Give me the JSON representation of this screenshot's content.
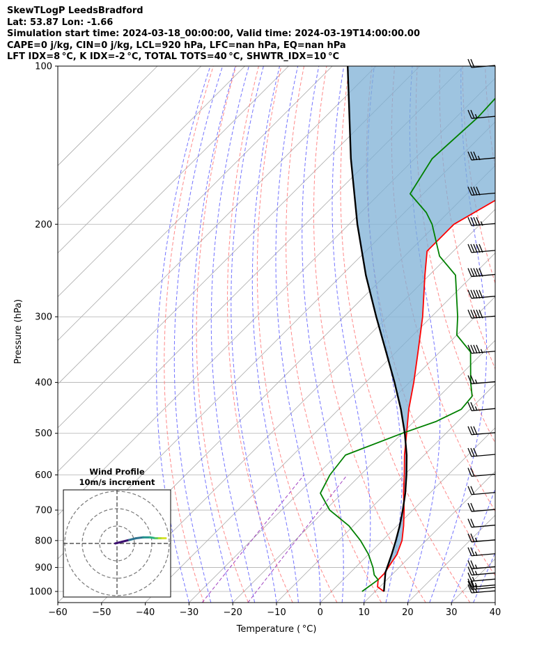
{
  "header": {
    "title": "SkewTLogP LeedsBradford",
    "location": "Lat: 53.87   Lon: -1.66",
    "times": "Simulation start time: 2024-03-18_00:00:00, Valid time: 2024-03-19T14:00:00.00",
    "parcel": "CAPE=0 j/kg, CIN=0 j/kg, LCL=920 hPa, LFC=nan hPa, EQ=nan hPa",
    "indices": "LFT IDX=8 °C, K IDX=-2 °C, TOTAL TOTS=40 °C, SHWTR_IDX=10 °C"
  },
  "chart_data": {
    "type": "line",
    "subtype": "skew-T log-p diagram",
    "xlabel": "Temperature ( °C)",
    "ylabel": "Pressure (hPa)",
    "xlim": [
      -60,
      40
    ],
    "ylim": [
      1050,
      100
    ],
    "y_scale": "log",
    "x_ticks": [
      -60,
      -50,
      -40,
      -30,
      -20,
      -10,
      0,
      10,
      20,
      30,
      40
    ],
    "y_ticks": [
      100,
      200,
      300,
      400,
      500,
      600,
      700,
      800,
      900,
      1000
    ],
    "grid": true,
    "series": [
      {
        "role": "temperature",
        "color": "#ff0000",
        "p": [
          1000,
          980,
          950,
          925,
          900,
          850,
          800,
          750,
          700,
          650,
          600,
          550,
          500,
          450,
          400,
          350,
          300,
          250,
          225,
          200,
          180,
          160,
          150,
          140,
          125,
          115,
          100
        ],
        "t": [
          12,
          9.5,
          8,
          8,
          7.5,
          6.5,
          4.5,
          1.5,
          -2,
          -6,
          -10,
          -14.5,
          -19,
          -24,
          -29,
          -35,
          -42,
          -51,
          -56,
          -56,
          -52,
          -48,
          -47,
          -48.5,
          -51,
          -53,
          -55
        ]
      },
      {
        "role": "dewpoint",
        "color": "#008000",
        "p": [
          1000,
          950,
          930,
          900,
          850,
          800,
          750,
          700,
          650,
          600,
          550,
          500,
          475,
          450,
          425,
          400,
          350,
          325,
          300,
          250,
          230,
          200,
          190,
          175,
          150,
          125,
          100
        ],
        "t": [
          7,
          8,
          6,
          4,
          0,
          -5,
          -11,
          -19,
          -25,
          -27,
          -28,
          -20,
          -15,
          -12,
          -12.5,
          -16,
          -23,
          -30,
          -34,
          -44,
          -52,
          -61,
          -65,
          -73,
          -76,
          -75,
          -76
        ]
      },
      {
        "role": "parcel",
        "color": "#000000",
        "p": [
          1000,
          920,
          850,
          800,
          750,
          700,
          650,
          600,
          550,
          500,
          450,
          400,
          350,
          300,
          250,
          200,
          150,
          100
        ],
        "t": [
          12,
          8,
          5.3,
          3.1,
          0.6,
          -2.3,
          -5.6,
          -9.5,
          -14,
          -19.4,
          -25.8,
          -33.4,
          -42.3,
          -52.6,
          -64.5,
          -78.1,
          -94.6,
          -116.5
        ]
      }
    ],
    "shaded_region": {
      "color": "#7eb0d5",
      "between": [
        "parcel",
        "temperature"
      ],
      "label": ""
    },
    "skew": 1.0,
    "reference_lines": {
      "isotherms": {
        "color": "#aaaaaa",
        "step": 10
      },
      "dry_adiabats": {
        "color": "#ff6b6b",
        "style": "dashed"
      },
      "moist_adiabats": {
        "color": "#5b5bff",
        "style": "dashed"
      },
      "mixing_ratio": {
        "color": "#9f40c0",
        "style": "dashed"
      }
    },
    "wind_barbs": {
      "p": [
        1000,
        985,
        975,
        950,
        925,
        900,
        850,
        800,
        750,
        700,
        650,
        600,
        550,
        500,
        450,
        400,
        350,
        300,
        275,
        250,
        225,
        200,
        175,
        150,
        125,
        100
      ],
      "speed_kt": [
        25,
        25,
        25,
        15,
        25,
        25,
        25,
        25,
        20,
        20,
        20,
        20,
        30,
        30,
        25,
        25,
        45,
        50,
        50,
        50,
        50,
        45,
        40,
        35,
        25,
        20
      ]
    },
    "inset": {
      "title": "Wind Profile",
      "subtitle": "10m/s increment",
      "type": "hodograph",
      "rings_ms": [
        10,
        20,
        30
      ],
      "u": [
        -1,
        3,
        7,
        11,
        15,
        19,
        22,
        24,
        26,
        28
      ],
      "v": [
        0,
        1,
        2,
        3,
        3.5,
        3.5,
        3,
        3,
        3,
        3
      ],
      "colors": [
        "#3b0f70",
        "#3b0f70",
        "#2c728e",
        "#2c728e",
        "#21918c",
        "#28ae80",
        "#5ec962",
        "#addc30",
        "#d6e22e",
        "#fde725"
      ]
    }
  }
}
